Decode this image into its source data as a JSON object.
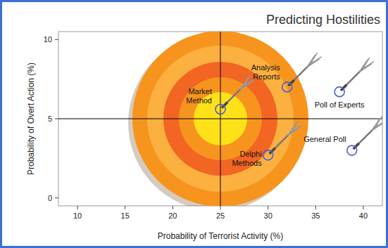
{
  "chart_data": {
    "type": "scatter",
    "title": "Predicting Hostilities",
    "x_label": "Probability of Terrorist Activity (%)",
    "y_label": "Probability of Overt Action (%)",
    "labels": [
      "Market Method",
      "Analysis Reports",
      "Poll of Experts",
      "General Poll",
      "Delphi Methods"
    ],
    "x": [
      25,
      32,
      37.5,
      38.8,
      30
    ],
    "values": [
      5.6,
      7.0,
      6.7,
      3.0,
      2.7
    ],
    "crosshair": {
      "x": 25,
      "y": 5
    },
    "color": "#4a5fd6",
    "marker": "circle",
    "xlim": [
      8,
      42
    ],
    "xticks": [
      10,
      15,
      20,
      25,
      30,
      35,
      40
    ],
    "ylim": [
      -0.5,
      10.5
    ],
    "yticks": [
      0,
      5,
      10
    ],
    "grid": false
  }
}
